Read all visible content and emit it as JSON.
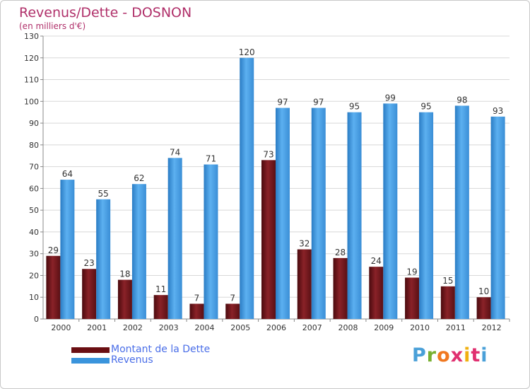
{
  "chart_data": {
    "type": "bar",
    "title": "Revenus/Dette - DOSNON",
    "subtitle": "(en milliers d'€)",
    "categories": [
      "2000",
      "2001",
      "2002",
      "2003",
      "2004",
      "2005",
      "2006",
      "2007",
      "2008",
      "2009",
      "2010",
      "2011",
      "2012"
    ],
    "series": [
      {
        "name": "Montant de la Dette",
        "color": "#7a1a1f",
        "values": [
          29,
          23,
          18,
          11,
          7,
          7,
          73,
          32,
          28,
          24,
          19,
          15,
          10
        ]
      },
      {
        "name": "Revenus",
        "color": "#3a94dc",
        "values": [
          64,
          55,
          62,
          74,
          71,
          120,
          97,
          97,
          95,
          99,
          95,
          98,
          93
        ]
      }
    ],
    "ylim": [
      0,
      130
    ],
    "yticks": [
      0,
      10,
      20,
      30,
      40,
      50,
      60,
      70,
      80,
      90,
      100,
      110,
      120,
      130
    ],
    "grid": true,
    "legend": "bottom-left"
  },
  "logo": {
    "text": "Proxiti"
  }
}
